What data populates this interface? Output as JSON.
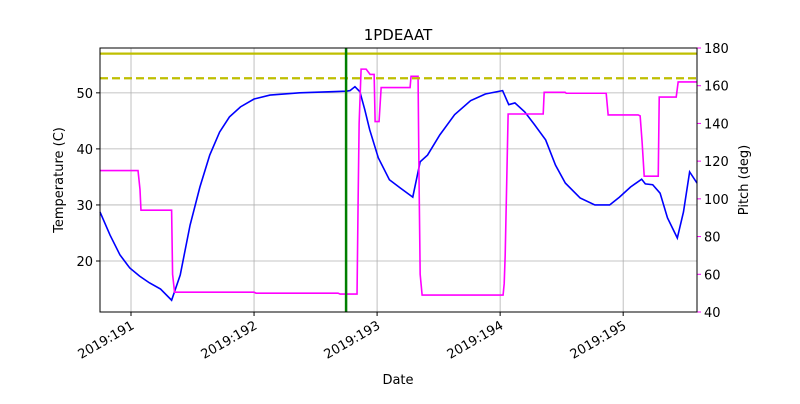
{
  "chart_data": {
    "type": "line",
    "title": "1PDEAAT",
    "x_label": "Date",
    "y_label": "Temperature (C)",
    "y2_label": "Pitch (deg)",
    "xlim": [
      190.748,
      195.6
    ],
    "ylim": [
      10.9,
      58.0
    ],
    "y2lim": [
      40,
      180
    ],
    "xticks": [
      {
        "value": 191,
        "label": "2019:191"
      },
      {
        "value": 192,
        "label": "2019:192"
      },
      {
        "value": 193,
        "label": "2019:193"
      },
      {
        "value": 194,
        "label": "2019:194"
      },
      {
        "value": 195,
        "label": "2019:195"
      }
    ],
    "yticks": [
      20,
      30,
      40,
      50
    ],
    "y2ticks": [
      40,
      60,
      80,
      100,
      120,
      140,
      160,
      180
    ],
    "y2_color": "#ff00ff",
    "grid": true,
    "hlines": [
      {
        "value": 57.0,
        "color": "#bfbf00",
        "dash": false
      },
      {
        "value": 52.6,
        "color": "#bfbf00",
        "dash": true
      }
    ],
    "vlines": [
      {
        "value": 192.748,
        "color": "#007f00"
      }
    ],
    "series": [
      {
        "color": "#0000ff",
        "x": [
          190.748,
          190.83,
          190.91,
          190.99,
          191.07,
          191.15,
          191.24,
          191.33,
          191.4,
          191.48,
          191.56,
          191.64,
          191.72,
          191.8,
          191.89,
          192.0,
          192.13,
          192.37,
          192.75,
          192.78,
          192.82,
          192.86,
          192.9,
          192.94,
          193.01,
          193.1,
          193.19,
          193.29,
          193.35,
          193.41,
          193.51,
          193.63,
          193.76,
          193.88,
          194.02,
          194.07,
          194.12,
          194.2,
          194.28,
          194.37,
          194.45,
          194.53,
          194.65,
          194.77,
          194.89,
          194.97,
          195.06,
          195.15,
          195.18,
          195.24,
          195.3,
          195.36,
          195.44,
          195.49,
          195.54,
          195.6
        ],
        "values": [
          28.75,
          24.6,
          21.1,
          18.75,
          17.3,
          16.1,
          15.0,
          13.0,
          17.5,
          26.4,
          33.2,
          38.9,
          43.0,
          45.7,
          47.5,
          48.9,
          49.6,
          50.0,
          50.3,
          50.4,
          51.1,
          50.2,
          47.0,
          43.4,
          38.4,
          34.5,
          33.0,
          31.4,
          37.7,
          38.9,
          42.5,
          46.1,
          48.6,
          49.8,
          50.4,
          47.9,
          48.2,
          46.6,
          44.3,
          41.6,
          37.1,
          33.9,
          31.25,
          30.0,
          30.0,
          31.4,
          33.2,
          34.6,
          33.75,
          33.6,
          32.1,
          27.7,
          24.1,
          28.75,
          35.9,
          33.9
        ]
      },
      {
        "color": "#ff00ff",
        "axis": "y2",
        "x": [
          190.748,
          191.057,
          191.073,
          191.081,
          191.33,
          191.338,
          191.354,
          192.0,
          192.016,
          192.683,
          192.699,
          192.837,
          192.846,
          192.854,
          192.87,
          192.911,
          192.943,
          192.976,
          192.984,
          193.016,
          193.033,
          193.268,
          193.276,
          193.333,
          193.341,
          193.35,
          193.366,
          194.024,
          194.033,
          194.041,
          194.057,
          194.065,
          194.35,
          194.358,
          194.528,
          194.537,
          194.862,
          194.878,
          195.122,
          195.138,
          195.154,
          195.171,
          195.285,
          195.293,
          195.431,
          195.447,
          195.6
        ],
        "values": [
          115,
          115,
          105,
          94,
          94,
          60,
          50.5,
          50.5,
          50,
          50,
          49.5,
          49.5,
          100,
          140,
          168.8,
          168.8,
          166,
          166,
          141,
          141,
          159,
          159,
          165,
          165,
          110,
          60,
          49,
          49,
          55,
          70,
          120,
          145,
          145,
          156.5,
          156.5,
          156,
          156,
          144.5,
          144.5,
          144,
          130,
          112,
          112,
          154,
          154,
          162,
          162
        ]
      }
    ]
  }
}
